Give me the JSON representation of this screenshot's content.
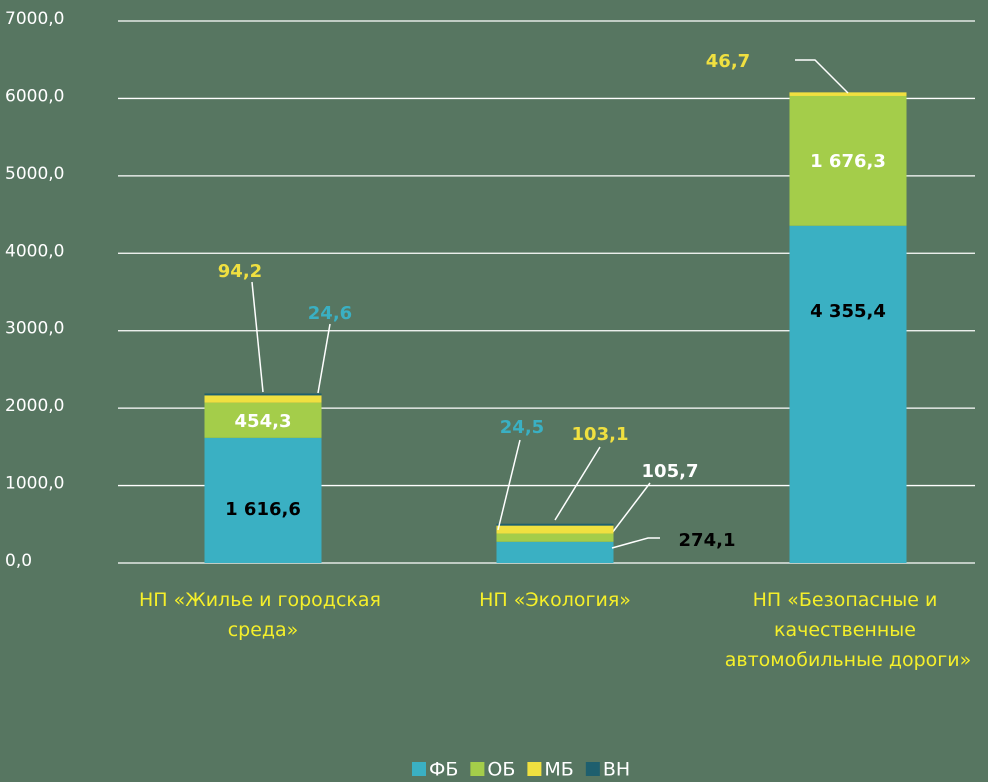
{
  "chart_data": {
    "type": "bar",
    "stacked": true,
    "categories": [
      "НП «Жилье и городская среда»",
      "НП «Экология»",
      "НП «Безопасные и качественные автомобильные дороги»"
    ],
    "series": [
      {
        "name": "ФБ",
        "color": "#3ab0c3",
        "label_color": "#000000",
        "values": [
          1616.6,
          274.1,
          4355.4
        ],
        "value_labels": [
          "1 616,6",
          "274,1",
          "4 355,4"
        ]
      },
      {
        "name": "ОБ",
        "color": "#a4cd4a",
        "label_color": "#ffffff",
        "values": [
          454.3,
          105.7,
          1676.3
        ],
        "value_labels": [
          "454,3",
          "105,7",
          "1 676,3"
        ]
      },
      {
        "name": "МБ",
        "color": "#f0e040",
        "label_color": "#f0e040",
        "values": [
          94.2,
          103.1,
          46.7
        ],
        "value_labels": [
          "94,2",
          "103,1",
          "46,7"
        ]
      },
      {
        "name": "ВН",
        "color": "#1e5f6e",
        "label_color": "#3ab0c3",
        "values": [
          24.6,
          24.5,
          null
        ],
        "value_labels": [
          "24,6",
          "24,5",
          null
        ]
      }
    ],
    "ylim": [
      0,
      7000
    ],
    "yticks": [
      {
        "value": 0,
        "label": "0,0"
      },
      {
        "value": 1000,
        "label": "1000,0"
      },
      {
        "value": 2000,
        "label": "2000,0"
      },
      {
        "value": 3000,
        "label": "3000,0"
      },
      {
        "value": 4000,
        "label": "4000,0"
      },
      {
        "value": 5000,
        "label": "5000,0"
      },
      {
        "value": 6000,
        "label": "6000,0"
      },
      {
        "value": 7000,
        "label": "7000,0"
      }
    ],
    "grid": true,
    "legend": "bottom"
  }
}
